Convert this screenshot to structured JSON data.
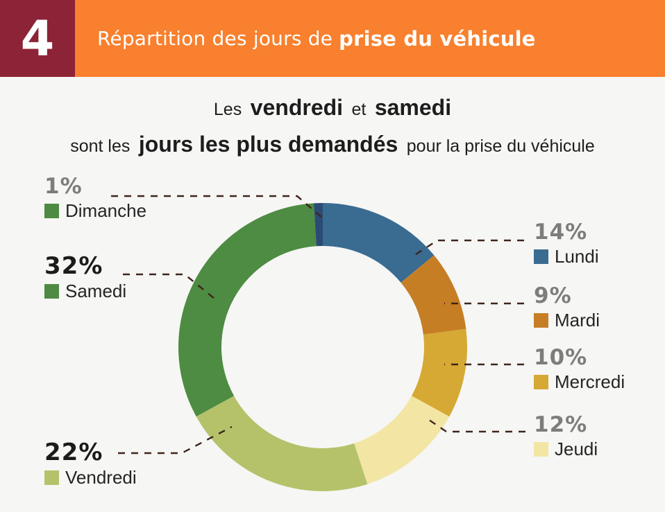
{
  "header": {
    "section_number": "4",
    "title_regular": "Répartition des jours de",
    "title_bold": "prise du véhicule",
    "band_color": "#f8802e",
    "number_box_color": "#8d2336",
    "text_color": "#ffffff"
  },
  "subtitle": {
    "l1_regular_a": "Les",
    "l1_bold_a": "vendredi",
    "l1_regular_b": "et",
    "l1_bold_b": "samedi",
    "l2_regular_a": "sont les",
    "l2_bold": "jours les plus demandés",
    "l2_regular_b": "pour la prise du véhicule"
  },
  "chart_data": {
    "type": "pie",
    "subtype": "donut",
    "title": "Répartition des jours de prise du véhicule",
    "unit": "%",
    "direction": "clockwise",
    "start_angle_deg_from_top": 0,
    "categories": [
      "Lundi",
      "Mardi",
      "Mercredi",
      "Jeudi",
      "Vendredi",
      "Samedi",
      "Dimanche"
    ],
    "values": [
      14,
      9,
      10,
      12,
      22,
      32,
      1
    ],
    "slices": [
      {
        "label": "Lundi",
        "value": 14,
        "percent_label": "14%",
        "slice_color": "#3a6b91",
        "legend_color": "#3a6b91",
        "emphasized": false
      },
      {
        "label": "Mardi",
        "value": 9,
        "percent_label": "9%",
        "slice_color": "#c67e24",
        "legend_color": "#c67e24",
        "emphasized": false
      },
      {
        "label": "Mercredi",
        "value": 10,
        "percent_label": "10%",
        "slice_color": "#d5a934",
        "legend_color": "#d5a934",
        "emphasized": false
      },
      {
        "label": "Jeudi",
        "value": 12,
        "percent_label": "12%",
        "slice_color": "#f3e5a4",
        "legend_color": "#f3e5a4",
        "emphasized": false
      },
      {
        "label": "Vendredi",
        "value": 22,
        "percent_label": "22%",
        "slice_color": "#b5c26a",
        "legend_color": "#b5c26a",
        "emphasized": true
      },
      {
        "label": "Samedi",
        "value": 32,
        "percent_label": "32%",
        "slice_color": "#4d8c42",
        "legend_color": "#4e8a42",
        "emphasized": true
      },
      {
        "label": "Dimanche",
        "value": 1,
        "percent_label": "1%",
        "slice_color": "#2c4b74",
        "legend_color": "#4e8a42",
        "emphasized": false
      }
    ],
    "connector_color": "#3e241c",
    "percent_gray_color": "#7d7d7d",
    "percent_emphasis_color": "#1b1b1b"
  }
}
